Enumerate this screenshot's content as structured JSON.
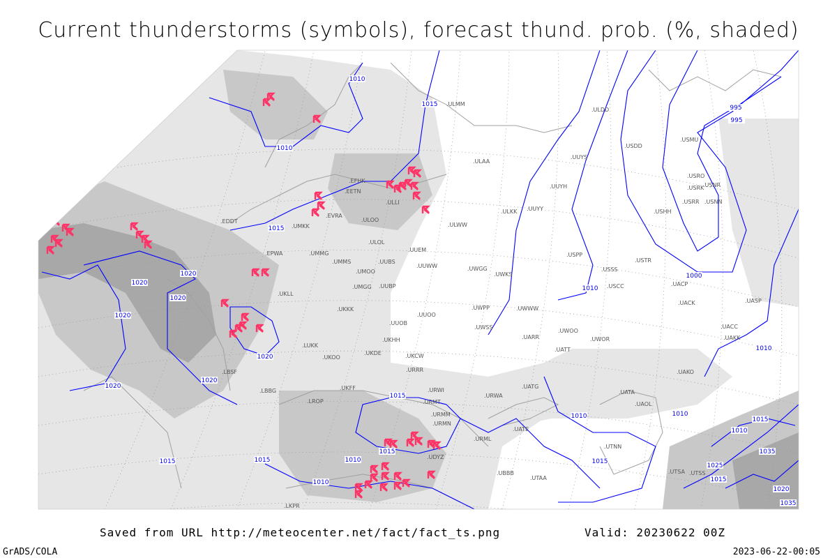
{
  "title": "Current thunderstorms (symbols), forecast thund. prob. (%, shaded)",
  "footer": {
    "saved": "Saved from URL http://meteocenter.net/fact/fact_ts.png",
    "valid": "Valid: 20230622 00Z",
    "software": "GrADS/COLA",
    "timestamp": "2023-06-22-00:05"
  },
  "colors": {
    "thunderstorm_symbol": "#ff3366",
    "isobar": "#0000ff",
    "coastline": "#a0a0a0",
    "shading_light": "#e6e6e6",
    "shading_mid": "#c8c8c8",
    "shading_dark": "#a8a8a8"
  },
  "legend": {
    "symbol": "thunderstorm-symbol-icon",
    "contours": "isobars (hPa)"
  },
  "isobar_labels": [
    "1010",
    "1015",
    "1010",
    "1015",
    "1020",
    "1020",
    "1020",
    "1020",
    "1020",
    "1020",
    "1020",
    "1015",
    "1015",
    "1010",
    "1015",
    "1010",
    "1015",
    "1010",
    "1015",
    "1010",
    "1010",
    "995",
    "995",
    "1000",
    "1010",
    "1010",
    "1015",
    "1020",
    "1015",
    "1025",
    "1035",
    "1035"
  ],
  "stations": [
    "ULAA",
    "ULMM",
    "ULOL",
    "ULOO",
    "ULLI",
    "ULWW",
    "EFHK",
    "EETN",
    "EVRA",
    "UMKK",
    "EPWA",
    "UMMG",
    "UMMS",
    "UMGG",
    "UMOO",
    "UUBS",
    "UUBP",
    "UUEM",
    "UUWW",
    "UWGG",
    "UWKS",
    "UUYY",
    "UUYH",
    "ULKK",
    "UUYS",
    "ULDD",
    "USDD",
    "USMU",
    "USRO",
    "USRK",
    "USNR",
    "USRR",
    "USNN",
    "USHH",
    "USPP",
    "USSS",
    "USCC",
    "USTR",
    "UACP",
    "UACK",
    "UASP",
    "UKLL",
    "UKKK",
    "UKHH",
    "UKDE",
    "UKCW",
    "URRR",
    "UUOO",
    "UUOB",
    "UWPP",
    "UWSS",
    "UWWW",
    "UARR",
    "UWOO",
    "UATT",
    "UWOR",
    "UACC",
    "UAKK",
    "UAKO",
    "URWI",
    "URMT",
    "URMM",
    "URMN",
    "URML",
    "UATG",
    "URWA",
    "UATE",
    "UATA",
    "UAOL",
    "UTNN",
    "UBBB",
    "UDYZ",
    "UTAA",
    "UTSA",
    "UTSS",
    "LKPR",
    "EDDT",
    "LBSF",
    "LROP",
    "LBBG",
    "UKFF",
    "UKOO",
    "LUKK"
  ]
}
